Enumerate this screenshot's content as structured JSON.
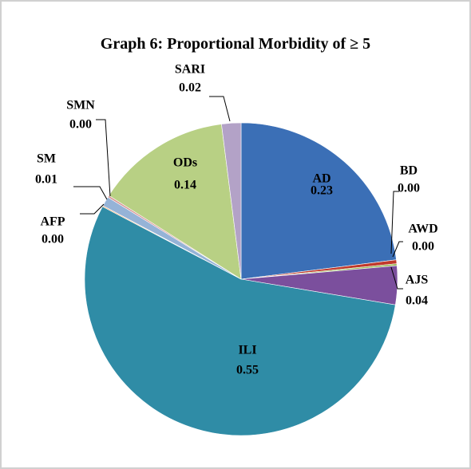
{
  "chart_data": {
    "type": "pie",
    "title": "Graph 6: Proportional Morbidity of ≥ 5",
    "categories": [
      "AD",
      "BD",
      "AWD",
      "AJS",
      "ILI",
      "AFP",
      "SM",
      "SMN",
      "ODs",
      "SARI"
    ],
    "values": [
      0.23,
      0.004,
      0.002,
      0.04,
      0.55,
      0.001,
      0.01,
      0.002,
      0.14,
      0.02
    ],
    "value_labels": [
      "0.23",
      "0.00",
      "0.00",
      "0.04",
      "0.55",
      "0.00",
      "0.01",
      "0.00",
      "0.14",
      "0.02"
    ],
    "colors": [
      "#3b6fb6",
      "#c0392b",
      "#9bbb59",
      "#7b4f9d",
      "#2f8ca6",
      "#f79646",
      "#95b3d7",
      "#d99694",
      "#b8d084",
      "#b3a2c7"
    ]
  }
}
